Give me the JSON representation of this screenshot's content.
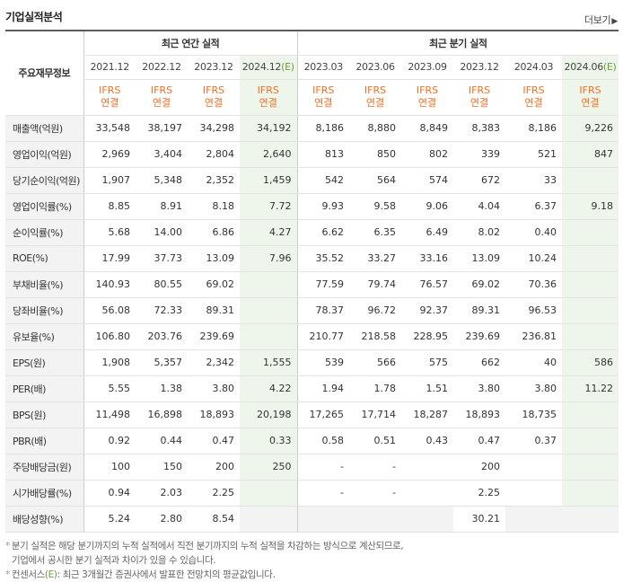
{
  "header": {
    "title": "기업실적분석",
    "more_label": "더보기",
    "more_arrow": "▶"
  },
  "table": {
    "corner_label": "주요재무정보",
    "annual_group": "최근 연간 실적",
    "quarter_group": "최근 분기 실적",
    "periods": [
      {
        "label": "2021.12",
        "estimate": false
      },
      {
        "label": "2022.12",
        "estimate": false
      },
      {
        "label": "2023.12",
        "estimate": false
      },
      {
        "label": "2024.12",
        "estimate": true
      },
      {
        "label": "2023.03",
        "estimate": false
      },
      {
        "label": "2023.06",
        "estimate": false
      },
      {
        "label": "2023.09",
        "estimate": false
      },
      {
        "label": "2023.12",
        "estimate": false
      },
      {
        "label": "2024.03",
        "estimate": false
      },
      {
        "label": "2024.06",
        "estimate": true
      }
    ],
    "estimate_mark": "(E)",
    "basis_line1": "IFRS",
    "basis_line2": "연결",
    "rows": [
      {
        "label": "매출액(억원)",
        "values": [
          "33,548",
          "38,197",
          "34,298",
          "34,192",
          "8,186",
          "8,880",
          "8,849",
          "8,383",
          "8,186",
          "9,226"
        ],
        "group_start": true
      },
      {
        "label": "영업이익(억원)",
        "values": [
          "2,969",
          "3,404",
          "2,804",
          "2,640",
          "813",
          "850",
          "802",
          "339",
          "521",
          "847"
        ]
      },
      {
        "label": "당기순이익(억원)",
        "values": [
          "1,907",
          "5,348",
          "2,352",
          "1,459",
          "542",
          "564",
          "574",
          "672",
          "33",
          ""
        ]
      },
      {
        "label": "영업이익률(%)",
        "values": [
          "8.85",
          "8.91",
          "8.18",
          "7.72",
          "9.93",
          "9.58",
          "9.06",
          "4.04",
          "6.37",
          "9.18"
        ],
        "group_start": true
      },
      {
        "label": "순이익률(%)",
        "values": [
          "5.68",
          "14.00",
          "6.86",
          "4.27",
          "6.62",
          "6.35",
          "6.49",
          "8.02",
          "0.40",
          ""
        ]
      },
      {
        "label": "ROE(%)",
        "values": [
          "17.99",
          "37.73",
          "13.09",
          "7.96",
          "35.52",
          "33.27",
          "33.16",
          "13.09",
          "10.24",
          ""
        ]
      },
      {
        "label": "부채비율(%)",
        "values": [
          "140.93",
          "80.55",
          "69.02",
          "",
          "77.59",
          "79.74",
          "76.57",
          "69.02",
          "70.36",
          ""
        ],
        "group_start": true
      },
      {
        "label": "당좌비율(%)",
        "values": [
          "56.08",
          "72.33",
          "89.31",
          "",
          "78.37",
          "96.72",
          "92.37",
          "89.31",
          "96.53",
          ""
        ]
      },
      {
        "label": "유보율(%)",
        "values": [
          "106.80",
          "203.76",
          "239.69",
          "",
          "210.77",
          "218.58",
          "228.95",
          "239.69",
          "236.81",
          ""
        ]
      },
      {
        "label": "EPS(원)",
        "values": [
          "1,908",
          "5,357",
          "2,342",
          "1,555",
          "539",
          "566",
          "575",
          "662",
          "40",
          "586"
        ],
        "group_start": true
      },
      {
        "label": "PER(배)",
        "values": [
          "5.55",
          "1.38",
          "3.80",
          "4.22",
          "1.94",
          "1.78",
          "1.51",
          "3.80",
          "3.80",
          "11.22"
        ]
      },
      {
        "label": "BPS(원)",
        "values": [
          "11,498",
          "16,898",
          "18,893",
          "20,198",
          "17,265",
          "17,714",
          "18,287",
          "18,893",
          "18,735",
          ""
        ]
      },
      {
        "label": "PBR(배)",
        "values": [
          "0.92",
          "0.44",
          "0.47",
          "0.33",
          "0.58",
          "0.51",
          "0.43",
          "0.47",
          "0.37",
          ""
        ]
      },
      {
        "label": "주당배당금(원)",
        "values": [
          "100",
          "150",
          "200",
          "250",
          "-",
          "-",
          "",
          "200",
          "",
          ""
        ],
        "group_start": true
      },
      {
        "label": "시가배당률(%)",
        "values": [
          "0.94",
          "2.03",
          "2.25",
          "",
          "-",
          "-",
          "",
          "2.25",
          "",
          ""
        ]
      },
      {
        "label": "배당성향(%)",
        "values": [
          "5.24",
          "2.80",
          "8.54",
          "",
          "",
          "",
          "",
          "30.21",
          "",
          ""
        ],
        "blank_cols": [
          3,
          4,
          5,
          6,
          8,
          9
        ]
      }
    ]
  },
  "notes": {
    "bullet": "*",
    "line1": "분기 실적은 해당 분기까지의 누적 실적에서 직전 분기까지의 누적 실적을 차감하는 방식으로 계산되므로,",
    "line2": "기업에서 공시한 분기 실적과 차이가 있을 수 있습니다.",
    "line3_prefix": "컨센서스",
    "line3_mark": "(E)",
    "line3_rest": ": 최근 3개월간 증권사에서 발표한 전망치의 평균값입니다."
  }
}
